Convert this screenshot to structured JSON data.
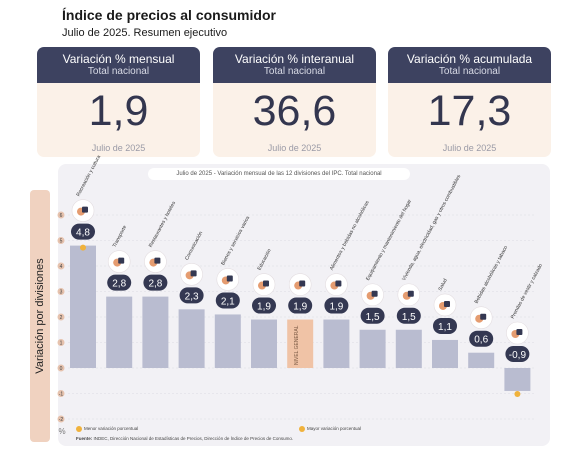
{
  "header": {
    "title": "Índice de precios al consumidor",
    "subtitle": "Julio de 2025. Resumen ejecutivo"
  },
  "kpis": [
    {
      "title": "Variación % mensual",
      "subtitle": "Total nacional",
      "value": "1,9",
      "date": "Julio de 2025"
    },
    {
      "title": "Variación % interanual",
      "subtitle": "Total nacional",
      "value": "36,6",
      "date": "Julio de 2025"
    },
    {
      "title": "Variación % acumulada",
      "subtitle": "Total nacional",
      "value": "17,3",
      "date": "Julio de 2025"
    }
  ],
  "colors": {
    "kpi_header": "#3d4260",
    "kpi_body": "#fbf1e8",
    "bar": "#b9bcd0",
    "bar_general": "#f0c3a6",
    "bubble": "#343852",
    "highlight": "#f0b23c"
  },
  "chart_data": {
    "type": "bar",
    "title": "Julio de 2025 - Variación mensual de las 12 divisiones del IPC. Total nacional",
    "ylabel": "Variación por divisiones",
    "yunit": "%",
    "ylim": [
      -2,
      6
    ],
    "yticks": [
      "6",
      "5",
      "4",
      "3",
      "2",
      "1",
      "0",
      "-1",
      "-2"
    ],
    "grid": true,
    "categories": [
      "Recreación y cultura",
      "Transporte",
      "Restaurantes y hoteles",
      "Comunicación",
      "Bienes y servicios varios",
      "Educación",
      "NIVEL GENERAL",
      "Alimentos y bebidas no alcohólicas",
      "Equipamiento y mantenimiento del hogar",
      "Vivienda, agua, electricidad, gas y otros combustibles",
      "Salud",
      "Bebidas alcohólicas y tabaco",
      "Prendas de vestir y calzado"
    ],
    "values": [
      4.8,
      2.8,
      2.8,
      2.3,
      2.1,
      1.9,
      1.9,
      1.9,
      1.5,
      1.5,
      1.1,
      0.6,
      -0.9
    ],
    "value_labels": [
      "4,8",
      "2,8",
      "2,8",
      "2,3",
      "2,1",
      "1,9",
      "1,9",
      "1,9",
      "1,5",
      "1,5",
      "1,1",
      "0,6",
      "-0,9"
    ],
    "general_label": "NIVEL GENERAL",
    "icons": [
      "camera-icon",
      "car-icon",
      "dining-icon",
      "phone-icon",
      "scissors-icon",
      "education-icon",
      "cart-icon",
      "food-icon",
      "sofa-icon",
      "bulb-icon",
      "health-icon",
      "beer-icon",
      "clothes-icon"
    ],
    "max_index": 0,
    "min_index": 12,
    "legend": [
      "Mayor variación porcentual",
      "Menor variación porcentual"
    ],
    "source_label": "Fuente:",
    "source": "INDEC, Dirección Nacional de Estadísticas de Precios, Dirección de Índice de Precios de Consumo."
  }
}
